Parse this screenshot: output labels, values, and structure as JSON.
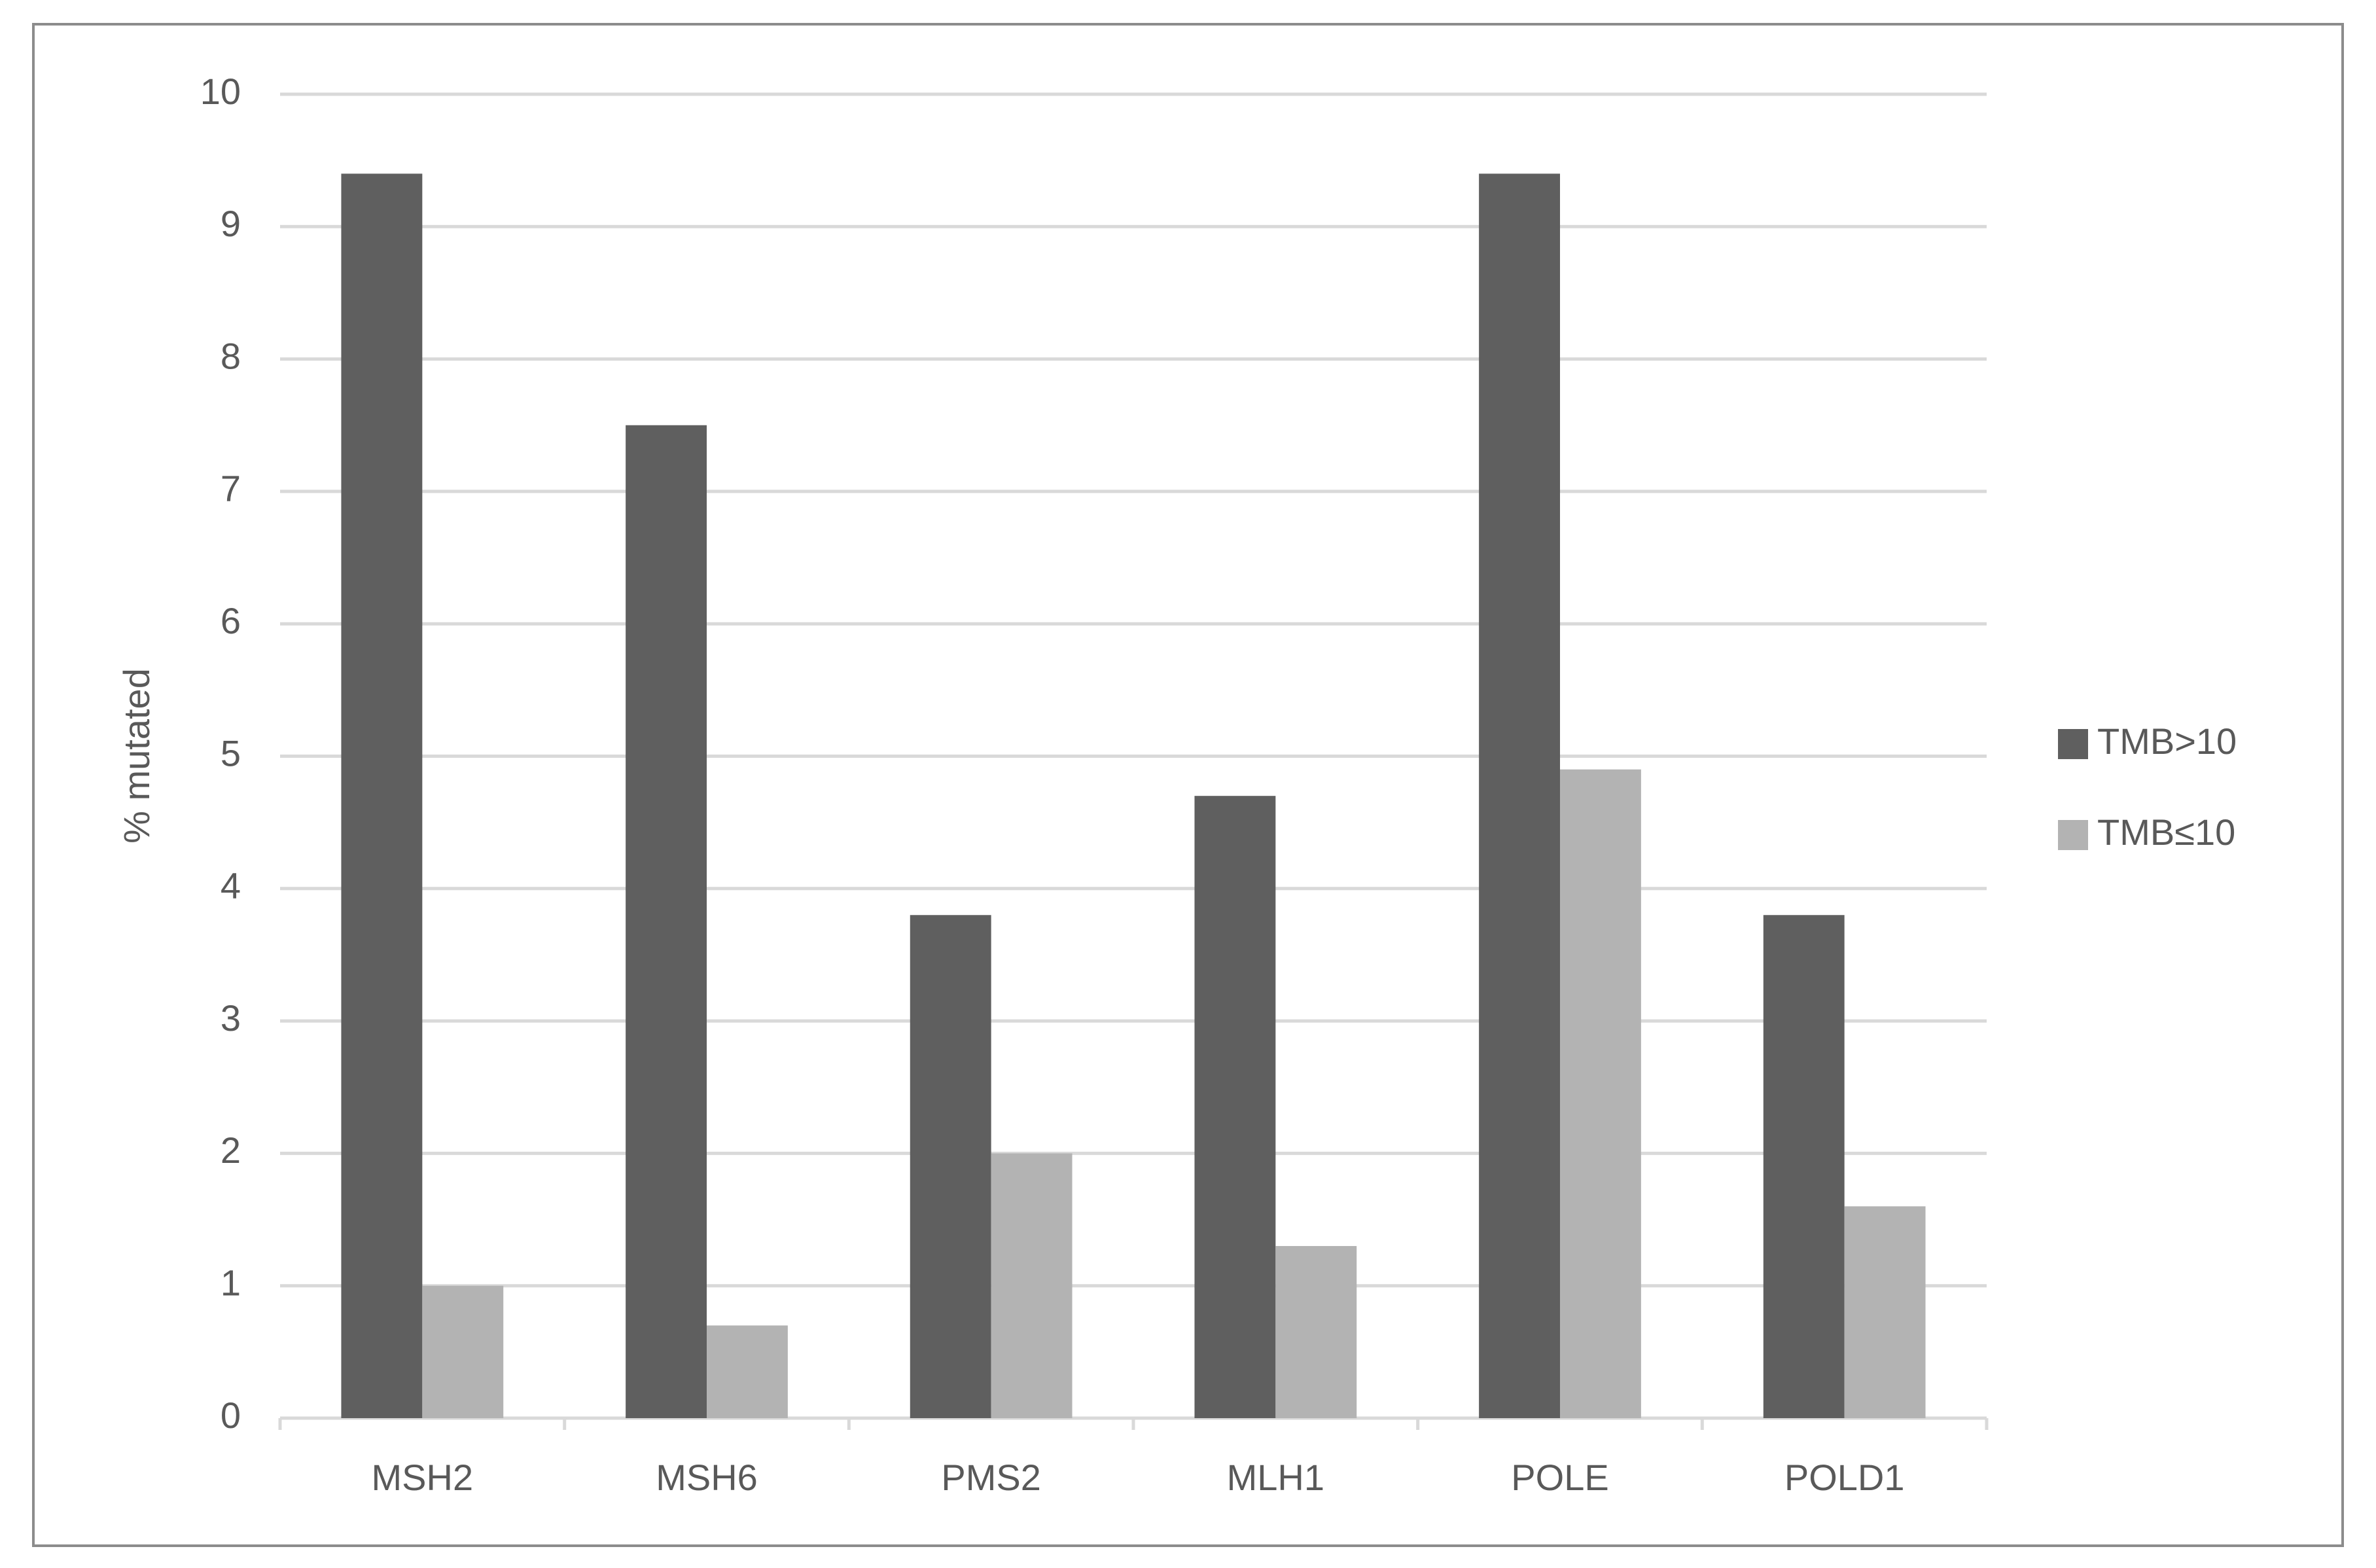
{
  "chart_data": {
    "type": "bar",
    "y_label": "% mutated",
    "categories": [
      "MSH2",
      "MSH6",
      "PMS2",
      "MLH1",
      "POLE",
      "POLD1"
    ],
    "series": [
      {
        "name": "TMB>10",
        "color": "#5f5f5f",
        "values": [
          9.4,
          7.5,
          3.8,
          4.7,
          9.4,
          3.8
        ]
      },
      {
        "name": "TMB≤10",
        "color": "#b3b3b3",
        "values": [
          1.0,
          0.7,
          2.0,
          1.3,
          4.9,
          1.6
        ]
      }
    ],
    "ylim": [
      0,
      10
    ],
    "yticks": [
      0,
      1,
      2,
      3,
      4,
      5,
      6,
      7,
      8,
      9,
      10
    ],
    "grid": true,
    "legend": "right"
  }
}
